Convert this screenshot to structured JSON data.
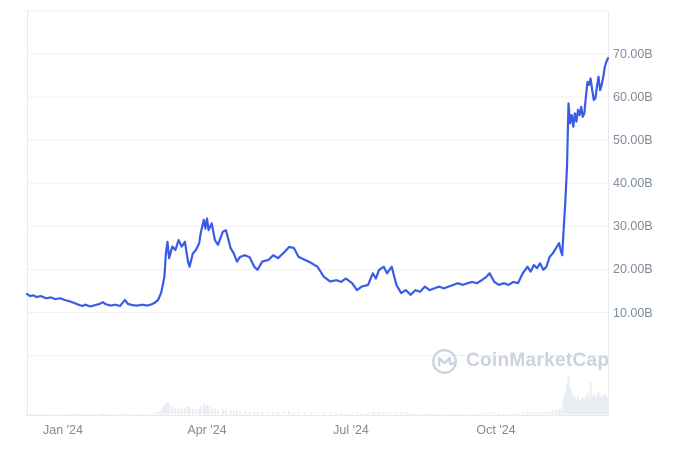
{
  "watermark": {
    "text": "CoinMarketCap"
  },
  "colors": {
    "line": "#3a5ce4",
    "gridline": "#eff1f5",
    "border": "#e7eaef",
    "axis_label": "#7e8a9a",
    "volume": "#e9edf4",
    "watermark": "#ccd3df",
    "background": "#ffffff"
  },
  "chart_data": {
    "type": "line",
    "title": "",
    "xlabel": "",
    "ylabel": "",
    "y_unit": "B",
    "ylim": [
      0,
      80
    ],
    "grid": true,
    "legend": "none",
    "y_axis_side": "right",
    "y_ticks": [
      {
        "label": "70.00B",
        "value": 70
      },
      {
        "label": "60.00B",
        "value": 60
      },
      {
        "label": "50.00B",
        "value": 50
      },
      {
        "label": "40.00B",
        "value": 40
      },
      {
        "label": "30.00B",
        "value": 30
      },
      {
        "label": "20.00B",
        "value": 20
      },
      {
        "label": "10.00B",
        "value": 10
      }
    ],
    "y_gridline_values": [
      0,
      10,
      20,
      30,
      40,
      50,
      60,
      70,
      80
    ],
    "x_ticks": [
      {
        "label": "Jan '24",
        "date": "2024-01-01"
      },
      {
        "label": "Apr '24",
        "date": "2024-04-01"
      },
      {
        "label": "Jul '24",
        "date": "2024-07-01"
      },
      {
        "label": "Oct '24",
        "date": "2024-10-01"
      }
    ],
    "point_format": [
      "date",
      "market_cap_billions",
      "volume_relative"
    ],
    "series_points": [
      [
        "2023-12-09",
        14.3,
        0.03
      ],
      [
        "2023-12-11",
        13.8,
        0.03
      ],
      [
        "2023-12-13",
        14.0,
        0.02
      ],
      [
        "2023-12-15",
        13.6,
        0.03
      ],
      [
        "2023-12-18",
        13.8,
        0.02
      ],
      [
        "2023-12-21",
        13.3,
        0.03
      ],
      [
        "2023-12-24",
        13.5,
        0.02
      ],
      [
        "2023-12-27",
        13.1,
        0.02
      ],
      [
        "2023-12-30",
        13.3,
        0.02
      ],
      [
        "2024-01-02",
        12.9,
        0.03
      ],
      [
        "2024-01-05",
        12.6,
        0.03
      ],
      [
        "2024-01-08",
        12.2,
        0.03
      ],
      [
        "2024-01-10",
        11.9,
        0.04
      ],
      [
        "2024-01-13",
        11.5,
        0.03
      ],
      [
        "2024-01-15",
        11.8,
        0.03
      ],
      [
        "2024-01-18",
        11.4,
        0.03
      ],
      [
        "2024-01-21",
        11.7,
        0.02
      ],
      [
        "2024-01-24",
        12.0,
        0.03
      ],
      [
        "2024-01-26",
        12.4,
        0.04
      ],
      [
        "2024-01-28",
        11.9,
        0.03
      ],
      [
        "2024-01-31",
        11.6,
        0.03
      ],
      [
        "2024-02-03",
        11.8,
        0.02
      ],
      [
        "2024-02-06",
        11.5,
        0.03
      ],
      [
        "2024-02-09",
        12.9,
        0.05
      ],
      [
        "2024-02-11",
        12.0,
        0.03
      ],
      [
        "2024-02-14",
        11.7,
        0.03
      ],
      [
        "2024-02-17",
        11.6,
        0.02
      ],
      [
        "2024-02-20",
        11.8,
        0.03
      ],
      [
        "2024-02-23",
        11.6,
        0.02
      ],
      [
        "2024-02-26",
        11.9,
        0.03
      ],
      [
        "2024-02-28",
        12.3,
        0.04
      ],
      [
        "2024-03-01",
        12.9,
        0.08
      ],
      [
        "2024-03-03",
        14.6,
        0.12
      ],
      [
        "2024-03-04",
        16.4,
        0.18
      ],
      [
        "2024-03-05",
        18.3,
        0.25
      ],
      [
        "2024-03-06",
        23.7,
        0.3
      ],
      [
        "2024-03-07",
        26.4,
        0.32
      ],
      [
        "2024-03-08",
        22.6,
        0.28
      ],
      [
        "2024-03-10",
        25.3,
        0.22
      ],
      [
        "2024-03-12",
        24.5,
        0.18
      ],
      [
        "2024-03-14",
        26.8,
        0.2
      ],
      [
        "2024-03-16",
        25.3,
        0.15
      ],
      [
        "2024-03-18",
        26.4,
        0.18
      ],
      [
        "2024-03-20",
        21.8,
        0.22
      ],
      [
        "2024-03-21",
        20.6,
        0.2
      ],
      [
        "2024-03-23",
        23.7,
        0.15
      ],
      [
        "2024-03-25",
        24.5,
        0.13
      ],
      [
        "2024-03-27",
        26.0,
        0.15
      ],
      [
        "2024-03-28",
        28.4,
        0.22
      ],
      [
        "2024-03-30",
        31.5,
        0.28
      ],
      [
        "2024-03-31",
        29.5,
        0.2
      ],
      [
        "2024-04-01",
        31.8,
        0.25
      ],
      [
        "2024-04-02",
        29.1,
        0.22
      ],
      [
        "2024-04-04",
        30.7,
        0.18
      ],
      [
        "2024-04-06",
        26.8,
        0.15
      ],
      [
        "2024-04-08",
        25.7,
        0.12
      ],
      [
        "2024-04-11",
        28.7,
        0.14
      ],
      [
        "2024-04-13",
        29.1,
        0.13
      ],
      [
        "2024-04-16",
        24.9,
        0.12
      ],
      [
        "2024-04-18",
        23.7,
        0.1
      ],
      [
        "2024-04-20",
        21.8,
        0.12
      ],
      [
        "2024-04-22",
        22.9,
        0.09
      ],
      [
        "2024-04-25",
        23.3,
        0.08
      ],
      [
        "2024-04-28",
        22.8,
        0.07
      ],
      [
        "2024-05-01",
        20.6,
        0.08
      ],
      [
        "2024-05-03",
        19.9,
        0.07
      ],
      [
        "2024-05-06",
        21.8,
        0.08
      ],
      [
        "2024-05-10",
        22.2,
        0.06
      ],
      [
        "2024-05-13",
        23.3,
        0.07
      ],
      [
        "2024-05-16",
        22.6,
        0.06
      ],
      [
        "2024-05-20",
        24.0,
        0.08
      ],
      [
        "2024-05-23",
        25.2,
        0.09
      ],
      [
        "2024-05-26",
        25.0,
        0.06
      ],
      [
        "2024-05-29",
        22.9,
        0.06
      ],
      [
        "2024-06-02",
        22.2,
        0.05
      ],
      [
        "2024-06-06",
        21.5,
        0.05
      ],
      [
        "2024-06-10",
        20.6,
        0.05
      ],
      [
        "2024-06-14",
        18.3,
        0.06
      ],
      [
        "2024-06-18",
        17.2,
        0.05
      ],
      [
        "2024-06-22",
        17.5,
        0.04
      ],
      [
        "2024-06-25",
        17.1,
        0.04
      ],
      [
        "2024-06-28",
        17.9,
        0.04
      ],
      [
        "2024-07-02",
        16.8,
        0.04
      ],
      [
        "2024-07-05",
        15.2,
        0.05
      ],
      [
        "2024-07-08",
        16.0,
        0.04
      ],
      [
        "2024-07-12",
        16.4,
        0.04
      ],
      [
        "2024-07-15",
        19.1,
        0.07
      ],
      [
        "2024-07-17",
        17.9,
        0.05
      ],
      [
        "2024-07-19",
        19.9,
        0.06
      ],
      [
        "2024-07-22",
        20.6,
        0.06
      ],
      [
        "2024-07-24",
        19.1,
        0.05
      ],
      [
        "2024-07-27",
        20.6,
        0.05
      ],
      [
        "2024-07-30",
        16.4,
        0.06
      ],
      [
        "2024-08-02",
        14.5,
        0.06
      ],
      [
        "2024-08-05",
        15.2,
        0.05
      ],
      [
        "2024-08-08",
        14.1,
        0.04
      ],
      [
        "2024-08-11",
        15.2,
        0.03
      ],
      [
        "2024-08-14",
        14.8,
        0.03
      ],
      [
        "2024-08-17",
        16.0,
        0.04
      ],
      [
        "2024-08-20",
        15.2,
        0.03
      ],
      [
        "2024-08-23",
        15.6,
        0.03
      ],
      [
        "2024-08-26",
        16.0,
        0.03
      ],
      [
        "2024-08-29",
        15.6,
        0.03
      ],
      [
        "2024-09-01",
        16.0,
        0.03
      ],
      [
        "2024-09-04",
        16.4,
        0.03
      ],
      [
        "2024-09-07",
        16.8,
        0.03
      ],
      [
        "2024-09-10",
        16.4,
        0.03
      ],
      [
        "2024-09-13",
        16.8,
        0.03
      ],
      [
        "2024-09-16",
        17.1,
        0.04
      ],
      [
        "2024-09-19",
        16.8,
        0.03
      ],
      [
        "2024-09-22",
        17.5,
        0.04
      ],
      [
        "2024-09-25",
        18.3,
        0.05
      ],
      [
        "2024-09-27",
        19.1,
        0.06
      ],
      [
        "2024-09-30",
        17.1,
        0.04
      ],
      [
        "2024-10-03",
        16.4,
        0.04
      ],
      [
        "2024-10-06",
        16.8,
        0.03
      ],
      [
        "2024-10-09",
        16.4,
        0.04
      ],
      [
        "2024-10-12",
        17.1,
        0.04
      ],
      [
        "2024-10-15",
        16.8,
        0.04
      ],
      [
        "2024-10-18",
        19.1,
        0.06
      ],
      [
        "2024-10-21",
        20.6,
        0.08
      ],
      [
        "2024-10-23",
        19.5,
        0.06
      ],
      [
        "2024-10-25",
        21.0,
        0.07
      ],
      [
        "2024-10-27",
        20.3,
        0.05
      ],
      [
        "2024-10-29",
        21.4,
        0.08
      ],
      [
        "2024-10-31",
        19.9,
        0.06
      ],
      [
        "2024-11-02",
        20.6,
        0.07
      ],
      [
        "2024-11-04",
        22.9,
        0.1
      ],
      [
        "2024-11-06",
        23.7,
        0.12
      ],
      [
        "2024-11-08",
        24.9,
        0.12
      ],
      [
        "2024-11-10",
        26.1,
        0.15
      ],
      [
        "2024-11-11",
        24.5,
        0.12
      ],
      [
        "2024-11-12",
        23.3,
        0.2
      ],
      [
        "2024-11-13",
        29.9,
        0.45
      ],
      [
        "2024-11-14",
        36.1,
        0.6
      ],
      [
        "2024-11-15",
        43.8,
        0.8
      ],
      [
        "2024-11-16",
        58.5,
        1.0
      ],
      [
        "2024-11-17",
        53.9,
        0.7
      ],
      [
        "2024-11-18",
        55.8,
        0.6
      ],
      [
        "2024-11-19",
        53.1,
        0.5
      ],
      [
        "2024-11-20",
        56.2,
        0.45
      ],
      [
        "2024-11-21",
        54.3,
        0.4
      ],
      [
        "2024-11-22",
        57.0,
        0.5
      ],
      [
        "2024-11-23",
        55.8,
        0.35
      ],
      [
        "2024-11-24",
        57.7,
        0.4
      ],
      [
        "2024-11-25",
        55.4,
        0.45
      ],
      [
        "2024-11-26",
        56.2,
        0.4
      ],
      [
        "2024-11-27",
        60.1,
        0.5
      ],
      [
        "2024-11-28",
        63.5,
        0.55
      ],
      [
        "2024-11-29",
        62.8,
        0.45
      ],
      [
        "2024-11-30",
        64.3,
        0.85
      ],
      [
        "2024-12-01",
        61.6,
        0.5
      ],
      [
        "2024-12-02",
        59.3,
        0.55
      ],
      [
        "2024-12-03",
        59.7,
        0.45
      ],
      [
        "2024-12-04",
        62.4,
        0.5
      ],
      [
        "2024-12-05",
        64.7,
        0.6
      ],
      [
        "2024-12-06",
        61.6,
        0.5
      ],
      [
        "2024-12-07",
        62.8,
        0.45
      ],
      [
        "2024-12-08",
        64.7,
        0.5
      ],
      [
        "2024-12-09",
        67.0,
        0.55
      ],
      [
        "2024-12-10",
        68.2,
        0.5
      ],
      [
        "2024-12-11",
        69.0,
        0.45
      ]
    ]
  }
}
